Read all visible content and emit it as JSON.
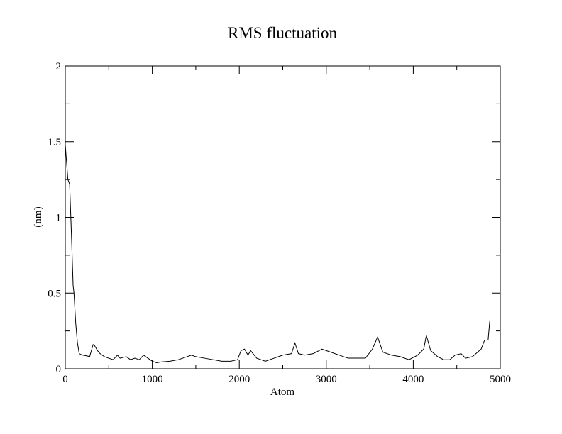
{
  "chart_data": {
    "type": "line",
    "title": "RMS fluctuation",
    "x_label": "Atom",
    "y_label": "(nm)",
    "xlim": [
      0,
      5000
    ],
    "ylim": [
      0,
      2
    ],
    "xticks": [
      0,
      1000,
      2000,
      3000,
      4000,
      5000
    ],
    "yticks": [
      0,
      0.5,
      1,
      1.5,
      2
    ],
    "xminorticks": [
      500,
      1500,
      2500,
      3500,
      4500
    ],
    "yminorticks": [
      0.25,
      0.75,
      1.25,
      1.75
    ],
    "grid": false,
    "series": [
      {
        "color": "#000000",
        "x": [
          0,
          10,
          30,
          50,
          70,
          90,
          100,
          120,
          140,
          160,
          200,
          250,
          280,
          300,
          320,
          340,
          370,
          400,
          450,
          500,
          550,
          600,
          630,
          700,
          750,
          800,
          850,
          900,
          950,
          1000,
          1050,
          1100,
          1200,
          1300,
          1400,
          1450,
          1500,
          1600,
          1700,
          1800,
          1900,
          1980,
          2020,
          2060,
          2100,
          2130,
          2200,
          2300,
          2400,
          2500,
          2600,
          2640,
          2680,
          2750,
          2850,
          2950,
          3050,
          3150,
          3250,
          3350,
          3450,
          3530,
          3590,
          3650,
          3750,
          3850,
          3950,
          4050,
          4120,
          4150,
          4200,
          4280,
          4350,
          4420,
          4480,
          4550,
          4600,
          4680,
          4720,
          4780,
          4820,
          4860,
          4880
        ],
        "values": [
          1.48,
          1.4,
          1.25,
          1.22,
          0.9,
          0.55,
          0.5,
          0.3,
          0.17,
          0.1,
          0.09,
          0.085,
          0.08,
          0.12,
          0.16,
          0.15,
          0.12,
          0.1,
          0.08,
          0.07,
          0.06,
          0.09,
          0.07,
          0.08,
          0.06,
          0.07,
          0.06,
          0.09,
          0.07,
          0.05,
          0.04,
          0.045,
          0.05,
          0.06,
          0.08,
          0.09,
          0.08,
          0.07,
          0.06,
          0.05,
          0.05,
          0.06,
          0.12,
          0.13,
          0.09,
          0.12,
          0.07,
          0.05,
          0.07,
          0.09,
          0.1,
          0.17,
          0.1,
          0.09,
          0.1,
          0.13,
          0.11,
          0.09,
          0.07,
          0.07,
          0.07,
          0.13,
          0.21,
          0.11,
          0.09,
          0.08,
          0.06,
          0.09,
          0.13,
          0.22,
          0.12,
          0.08,
          0.06,
          0.06,
          0.09,
          0.1,
          0.07,
          0.08,
          0.1,
          0.13,
          0.19,
          0.19,
          0.32
        ]
      }
    ]
  }
}
